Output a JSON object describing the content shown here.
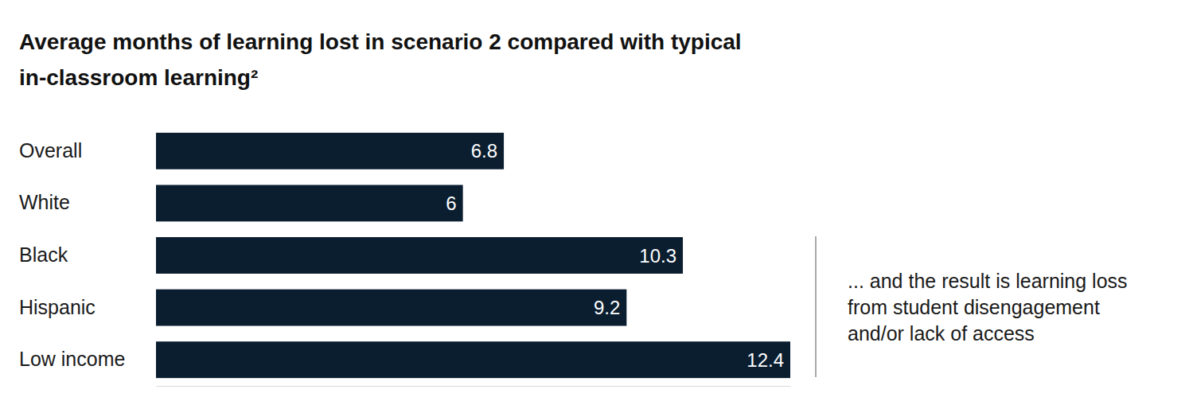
{
  "chart_data": {
    "type": "bar",
    "orientation": "horizontal",
    "title": "Average months of learning lost in scenario 2 compared with typical in-classroom learning²",
    "categories": [
      "Overall",
      "White",
      "Black",
      "Hispanic",
      "Low income"
    ],
    "values": [
      6.8,
      6.0,
      10.3,
      9.2,
      12.4
    ],
    "color": "#0a1e30",
    "xlim": [
      0,
      12.4
    ],
    "tick_labels": false,
    "grid": false,
    "data_labels": true,
    "annotation": [
      "... and the result is learning loss",
      "from student disengagement",
      "and/or lack of access"
    ]
  }
}
